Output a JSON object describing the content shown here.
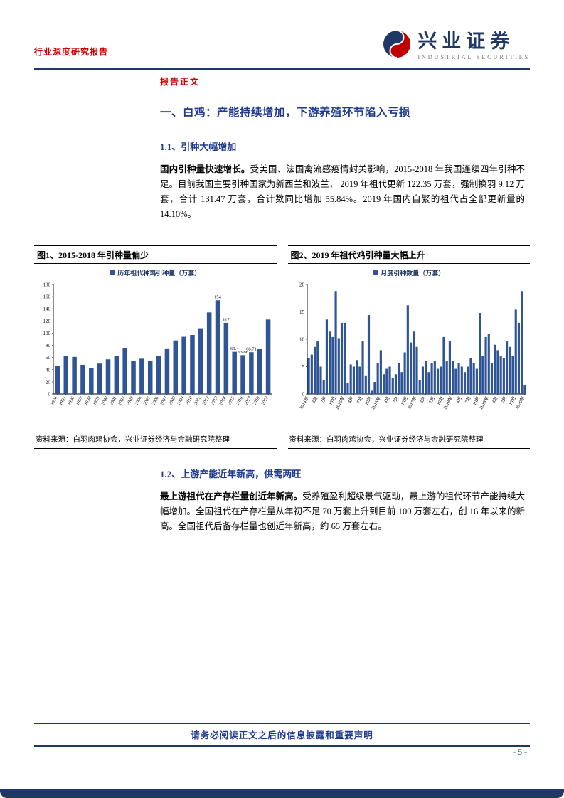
{
  "page": {
    "header_left": "行业深度研究报告",
    "brand": {
      "name": "兴业证券",
      "subtitle": "INDUSTRIAL SECURITIES"
    },
    "report_body_label": "报告正文",
    "footer_notice": "请务必阅读正文之后的信息披露和重要声明",
    "page_number": "- 5 -"
  },
  "sections": {
    "h1": "一、白鸡：产能持续增加，下游养殖环节陷入亏损",
    "h11": "1.1、引种大幅增加",
    "p1_lead": "国内引种量快速增长。",
    "p1_rest": "受美国、法国禽流感疫情封关影响，2015-2018 年我国连续四年引种不足。目前我国主要引种国家为新西兰和波兰， 2019 年祖代更新 122.35 万套，强制换羽 9.12 万套，合计 131.47 万套，合计数同比增加 55.84%。2019 年国内自繁的祖代占全部更新量的 14.10%。",
    "h12": "1.2、上游产能近年新高，供需两旺",
    "p2_lead": "最上游祖代在产存栏量创近年新高。",
    "p2_rest": "受养殖盈利超级景气驱动，最上游的祖代环节产能持续大幅增加。全国祖代在产存栏量从年初不足 70 万套上升到目前 100 万套左右，创 16 年以来的新高。全国祖代后备存栏量也创近年新高，约 65 万套左右。"
  },
  "figures": [
    {
      "title": "图1、2015-2018 年引种量偏少",
      "source": "资料来源：白羽肉鸡协会，兴业证券经济与金融研究院整理"
    },
    {
      "title": "图2、2019 年祖代鸡引种量大幅上升",
      "source": "资料来源：白羽肉鸡协会，兴业证券经济与金融研究院整理"
    }
  ],
  "chart_data": [
    {
      "type": "bar",
      "title": "图1、2015-2018 年引种量偏少",
      "legend": "历年祖代种鸡引种量（万套）",
      "xlabel": "",
      "ylabel": "",
      "ylim": [
        0,
        180
      ],
      "ytick": 20,
      "grid": false,
      "legend_position": "top",
      "bar_frac": 0.55,
      "italic_x": true,
      "categories": [
        "1994",
        "1995",
        "1996",
        "1997",
        "1998",
        "1999",
        "2000",
        "2001",
        "2002",
        "2003",
        "2004",
        "2005",
        "2006",
        "2007",
        "2008",
        "2009",
        "2010",
        "2011",
        "2012",
        "2013",
        "2014",
        "2015",
        "2016",
        "2017",
        "2018",
        "2019"
      ],
      "values": [
        46,
        62,
        61,
        48,
        43,
        50,
        57,
        62,
        76,
        54,
        58,
        55,
        63,
        75,
        88,
        94,
        97,
        108,
        134,
        154,
        117,
        69.4,
        63.86,
        68.71,
        74.54,
        122.35
      ],
      "bar_labels": {
        "2013": "154",
        "2014": "117",
        "2015": "69.4",
        "2016": "63.86",
        "2017": "68.71"
      }
    },
    {
      "type": "bar",
      "title": "图2、2019 年祖代鸡引种量大幅上升",
      "legend": "月度引种数量（万套）",
      "xlabel": "",
      "ylabel": "",
      "ylim": [
        0,
        20
      ],
      "ytick": 5,
      "grid": false,
      "legend_position": "top",
      "bar_frac": 0.75,
      "italic_x": false,
      "values": [
        6.5,
        7.2,
        8.6,
        9.6,
        5.0,
        2.6,
        13.6,
        11.4,
        10.4,
        18.8,
        10.2,
        13.0,
        13.0,
        2.0,
        5.4,
        5.0,
        6.2,
        5.0,
        9.6,
        3.4,
        14.4,
        0.6,
        2.2,
        5.6,
        8.0,
        3.6,
        4.6,
        5.0,
        3.0,
        3.6,
        5.6,
        4.0,
        7.6,
        16.2,
        9.4,
        11.4,
        8.6,
        2.6,
        5.0,
        6.0,
        4.0,
        5.6,
        6.0,
        4.6,
        5.0,
        10.4,
        6.0,
        9.6,
        6.0,
        4.6,
        5.6,
        5.0,
        4.0,
        5.0,
        6.6,
        5.6,
        4.6,
        14.8,
        7.0,
        10.4,
        11.0,
        5.6,
        9.0,
        8.0,
        7.0,
        6.6,
        9.6,
        8.6,
        7.0,
        15.4,
        13.0,
        18.8,
        1.6
      ],
      "x_ticks": [
        {
          "i": 0,
          "label": "2014年"
        },
        {
          "i": 3,
          "label": "4月"
        },
        {
          "i": 6,
          "label": "7月"
        },
        {
          "i": 9,
          "label": "10月"
        },
        {
          "i": 12,
          "label": "2015年"
        },
        {
          "i": 15,
          "label": "4月"
        },
        {
          "i": 18,
          "label": "7月"
        },
        {
          "i": 21,
          "label": "10月"
        },
        {
          "i": 24,
          "label": "2016年"
        },
        {
          "i": 27,
          "label": "4月"
        },
        {
          "i": 30,
          "label": "7月"
        },
        {
          "i": 33,
          "label": "10月"
        },
        {
          "i": 36,
          "label": "2017年"
        },
        {
          "i": 39,
          "label": "4月"
        },
        {
          "i": 42,
          "label": "7月"
        },
        {
          "i": 45,
          "label": "10月"
        },
        {
          "i": 48,
          "label": "2018年"
        },
        {
          "i": 51,
          "label": "4月"
        },
        {
          "i": 54,
          "label": "7月"
        },
        {
          "i": 57,
          "label": "10月"
        },
        {
          "i": 60,
          "label": "2019年"
        },
        {
          "i": 63,
          "label": "4月"
        },
        {
          "i": 66,
          "label": "7月"
        },
        {
          "i": 69,
          "label": "10月"
        },
        {
          "i": 72,
          "label": "2020年"
        }
      ]
    }
  ],
  "colors": {
    "accent_red": "#CC0000",
    "navy": "#1F3864",
    "title_blue": "#1F3A8F",
    "bar_blue": "#2F5597"
  }
}
